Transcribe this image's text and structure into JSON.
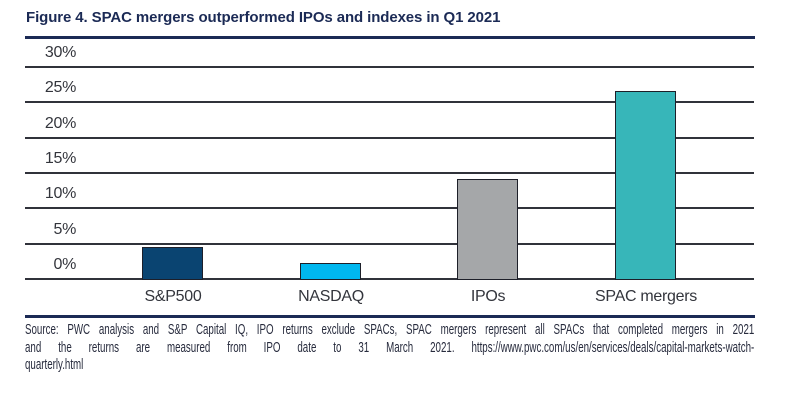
{
  "chart_data": {
    "type": "bar",
    "title": "Figure 4. SPAC mergers outperformed IPOs and indexes in Q1 2021",
    "categories": [
      "S&P500",
      "NASDAQ",
      "IPOs",
      "SPAC mergers"
    ],
    "values": [
      4.7,
      2.4,
      14.3,
      26.8
    ],
    "unit": "%",
    "bar_colors": [
      "#0a4471",
      "#00b7ef",
      "#a5a7a9",
      "#37b6b9"
    ],
    "bar_outline_color": "#1d1f29",
    "xlabel": "",
    "ylabel": "",
    "ylim": [
      0,
      30
    ],
    "ytick_step": 5,
    "ytick_labels": [
      "30%",
      "25%",
      "20%",
      "15%",
      "10%",
      "5%",
      "0%"
    ],
    "grid": true,
    "gridline_color": "#30323a",
    "legend": "none"
  },
  "accent_color": "#1b2a55",
  "footer": {
    "lines": [
      "Source: PWC analysis and S&P Capital IQ, IPO returns exclude SPACs, SPAC mergers represent all SPACs that completed mergers in 2021",
      "and the returns are measured from IPO date to 31 March 2021. https://www.pwc.com/us/en/services/deals/capital-markets-watch-",
      "quarterly.html"
    ]
  }
}
